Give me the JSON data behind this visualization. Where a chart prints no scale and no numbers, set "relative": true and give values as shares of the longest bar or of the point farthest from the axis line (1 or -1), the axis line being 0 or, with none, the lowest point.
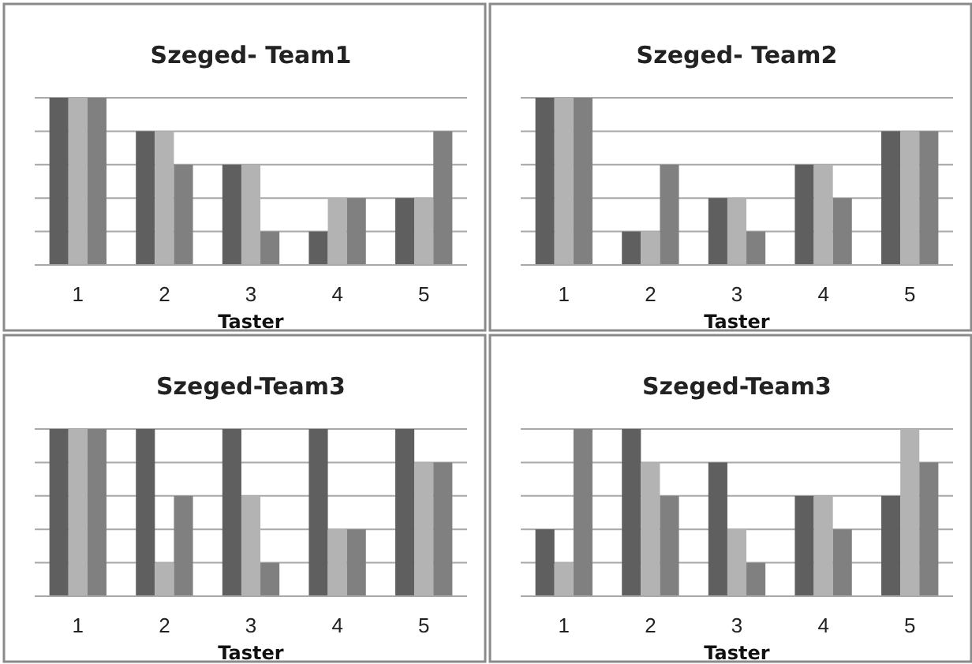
{
  "chart_data": [
    {
      "type": "bar",
      "title": "Szeged- Team1",
      "xlabel": "Taster",
      "categories": [
        "1",
        "2",
        "3",
        "4",
        "5"
      ],
      "relative": true,
      "grid": "y",
      "tick_labels": "x",
      "series": [
        {
          "color": "#5f5f5f",
          "values": [
            1,
            0.8,
            0.6,
            0.2,
            0.4
          ]
        },
        {
          "color": "#b3b3b3",
          "values": [
            1,
            0.8,
            0.6,
            0.4,
            0.4
          ]
        },
        {
          "color": "#808080",
          "values": [
            1,
            0.6,
            0.2,
            0.4,
            0.8
          ]
        }
      ]
    },
    {
      "type": "bar",
      "title": "Szeged- Team2",
      "xlabel": "Taster",
      "categories": [
        "1",
        "2",
        "3",
        "4",
        "5"
      ],
      "relative": true,
      "grid": "y",
      "tick_labels": "x",
      "series": [
        {
          "color": "#5f5f5f",
          "values": [
            1,
            0.2,
            0.4,
            0.6,
            0.8
          ]
        },
        {
          "color": "#b3b3b3",
          "values": [
            1,
            0.2,
            0.4,
            0.6,
            0.8
          ]
        },
        {
          "color": "#808080",
          "values": [
            1,
            0.6,
            0.2,
            0.4,
            0.8
          ]
        }
      ]
    },
    {
      "type": "bar",
      "title": "Szeged-Team3",
      "xlabel": "Taster",
      "categories": [
        "1",
        "2",
        "3",
        "4",
        "5"
      ],
      "relative": true,
      "grid": "y",
      "tick_labels": "x",
      "series": [
        {
          "color": "#5f5f5f",
          "values": [
            1,
            1,
            1,
            1,
            1
          ]
        },
        {
          "color": "#b3b3b3",
          "values": [
            1,
            0.2,
            0.6,
            0.4,
            0.8
          ]
        },
        {
          "color": "#808080",
          "values": [
            1,
            0.6,
            0.2,
            0.4,
            0.8
          ]
        }
      ]
    },
    {
      "type": "bar",
      "title": "Szeged-Team3",
      "xlabel": "Taster",
      "categories": [
        "1",
        "2",
        "3",
        "4",
        "5"
      ],
      "relative": true,
      "grid": "y",
      "tick_labels": "x",
      "series": [
        {
          "color": "#5f5f5f",
          "values": [
            0.4,
            1,
            0.8,
            0.6,
            0.6
          ]
        },
        {
          "color": "#b3b3b3",
          "values": [
            0.2,
            0.8,
            0.4,
            0.6,
            1
          ]
        },
        {
          "color": "#808080",
          "values": [
            1,
            0.6,
            0.2,
            0.4,
            0.8
          ]
        }
      ]
    }
  ]
}
